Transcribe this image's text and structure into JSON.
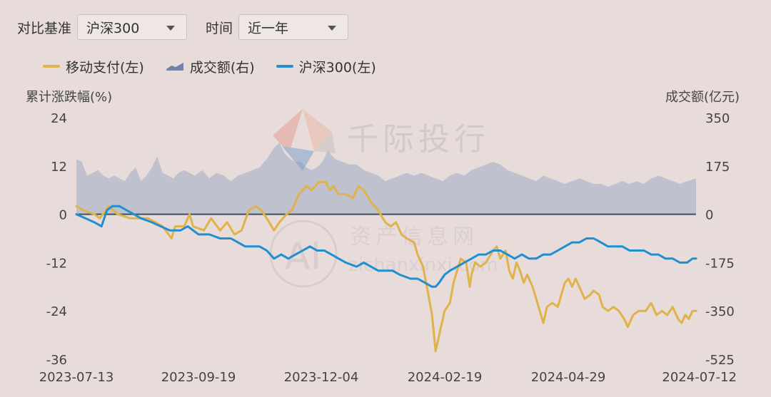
{
  "controls": {
    "benchmark_label": "对比基准",
    "benchmark_value": "沪深300",
    "period_label": "时间",
    "period_value": "近一年"
  },
  "legend": [
    {
      "label": "移动支付(左)",
      "color": "#e0b24a",
      "kind": "line"
    },
    {
      "label": "成交额(右)",
      "color": "#8a9cbe",
      "kind": "area"
    },
    {
      "label": "沪深300(左)",
      "color": "#1f8fd0",
      "kind": "line"
    }
  ],
  "watermarks": {
    "top_text": "千际投行",
    "mid_text": "资产信息网",
    "mid_sub": "zichanxinxi.com",
    "logo_letters": "AI"
  },
  "chart_data": {
    "type": "line",
    "left_axis_title": "累计涨跌幅(%)",
    "right_axis_title": "成交额(亿元)",
    "left_ticks": [
      "24",
      "12",
      "0",
      "-12",
      "-24",
      "-36"
    ],
    "right_ticks": [
      "350",
      "175",
      "0",
      "-175",
      "-350",
      "-525"
    ],
    "ylim_left": [
      -36,
      24
    ],
    "ylim_right": [
      -525,
      350
    ],
    "x_ticks": [
      "2023-07-13",
      "2023-09-19",
      "2023-12-04",
      "2024-02-19",
      "2024-04-29",
      "2024-07-12"
    ],
    "colors": {
      "mobile_pay": "#e0b24a",
      "hs300": "#1f8fd0",
      "volume": "#8a9cbe",
      "zero_line": "#3f5062"
    },
    "series": [
      {
        "name": "移动支付(左)",
        "axis": "left",
        "points": [
          [
            0,
            2
          ],
          [
            4,
            1
          ],
          [
            10,
            0
          ],
          [
            13,
            -1
          ],
          [
            18,
            2
          ],
          [
            23,
            0
          ],
          [
            30,
            -1
          ],
          [
            40,
            -1
          ],
          [
            48,
            -3
          ],
          [
            53,
            -6
          ],
          [
            55,
            -3
          ],
          [
            60,
            -3
          ],
          [
            63,
            0
          ],
          [
            65,
            -3
          ],
          [
            71,
            -4
          ],
          [
            75,
            -1
          ],
          [
            80,
            -4
          ],
          [
            84,
            -2
          ],
          [
            88,
            -5
          ],
          [
            92,
            -4
          ],
          [
            96,
            1
          ],
          [
            100,
            2
          ],
          [
            103,
            1
          ],
          [
            106,
            -1
          ],
          [
            110,
            -4
          ],
          [
            113,
            -2
          ],
          [
            117,
            0
          ],
          [
            120,
            1
          ],
          [
            124,
            5
          ],
          [
            128,
            7
          ],
          [
            131,
            6
          ],
          [
            135,
            8
          ],
          [
            139,
            8
          ],
          [
            141,
            6
          ],
          [
            143,
            7
          ],
          [
            146,
            5
          ],
          [
            150,
            5
          ],
          [
            154,
            4
          ],
          [
            157,
            7
          ],
          [
            160,
            6
          ],
          [
            164,
            3
          ],
          [
            168,
            1
          ],
          [
            172,
            -2
          ],
          [
            175,
            -3
          ],
          [
            178,
            -2
          ],
          [
            181,
            -5
          ],
          [
            184,
            -6
          ],
          [
            188,
            -7
          ],
          [
            190,
            -10
          ],
          [
            193,
            -13
          ],
          [
            196,
            -20
          ],
          [
            198,
            -25
          ],
          [
            200,
            -34
          ],
          [
            201,
            -32
          ],
          [
            203,
            -28
          ],
          [
            205,
            -24
          ],
          [
            208,
            -22
          ],
          [
            210,
            -17
          ],
          [
            212,
            -14
          ],
          [
            214,
            -11
          ],
          [
            217,
            -12
          ],
          [
            219,
            -18
          ],
          [
            220,
            -15
          ],
          [
            222,
            -12
          ],
          [
            225,
            -13
          ],
          [
            228,
            -12
          ],
          [
            232,
            -9
          ],
          [
            234,
            -8
          ],
          [
            236,
            -11
          ],
          [
            239,
            -9
          ],
          [
            241,
            -14
          ],
          [
            243,
            -16
          ],
          [
            245,
            -12
          ],
          [
            247,
            -14
          ],
          [
            249,
            -17
          ],
          [
            251,
            -15
          ],
          [
            254,
            -18
          ],
          [
            256,
            -21
          ],
          [
            258,
            -24
          ],
          [
            260,
            -27
          ],
          [
            262,
            -23
          ],
          [
            265,
            -22
          ],
          [
            268,
            -23
          ],
          [
            270,
            -20
          ],
          [
            272,
            -17
          ],
          [
            274,
            -16
          ],
          [
            276,
            -18
          ],
          [
            278,
            -16
          ],
          [
            281,
            -19
          ],
          [
            283,
            -21
          ],
          [
            286,
            -20
          ],
          [
            288,
            -19
          ],
          [
            291,
            -20
          ],
          [
            293,
            -23
          ],
          [
            296,
            -24
          ],
          [
            299,
            -23
          ],
          [
            302,
            -24
          ],
          [
            305,
            -26
          ],
          [
            307,
            -28
          ],
          [
            310,
            -25
          ],
          [
            313,
            -24
          ],
          [
            317,
            -24
          ],
          [
            320,
            -22
          ],
          [
            323,
            -25
          ],
          [
            326,
            -24
          ],
          [
            329,
            -25
          ],
          [
            332,
            -23
          ],
          [
            335,
            -26
          ],
          [
            337,
            -27
          ],
          [
            339,
            -25
          ],
          [
            341,
            -26
          ],
          [
            343,
            -24
          ],
          [
            345,
            -24
          ]
        ]
      },
      {
        "name": "沪深300(左)",
        "axis": "left",
        "points": [
          [
            0,
            0
          ],
          [
            5,
            -1
          ],
          [
            10,
            -2
          ],
          [
            14,
            -3
          ],
          [
            17,
            1
          ],
          [
            20,
            2
          ],
          [
            24,
            2
          ],
          [
            28,
            1
          ],
          [
            32,
            0
          ],
          [
            36,
            -1
          ],
          [
            42,
            -2
          ],
          [
            47,
            -3
          ],
          [
            52,
            -4
          ],
          [
            58,
            -4
          ],
          [
            62,
            -3
          ],
          [
            68,
            -5
          ],
          [
            74,
            -5
          ],
          [
            80,
            -6
          ],
          [
            86,
            -6
          ],
          [
            90,
            -7
          ],
          [
            94,
            -8
          ],
          [
            98,
            -8
          ],
          [
            102,
            -8
          ],
          [
            106,
            -9
          ],
          [
            110,
            -11
          ],
          [
            114,
            -10
          ],
          [
            118,
            -11
          ],
          [
            122,
            -10
          ],
          [
            126,
            -9
          ],
          [
            130,
            -8
          ],
          [
            134,
            -9
          ],
          [
            138,
            -9
          ],
          [
            142,
            -10
          ],
          [
            146,
            -11
          ],
          [
            150,
            -12
          ],
          [
            156,
            -13
          ],
          [
            160,
            -12
          ],
          [
            164,
            -13
          ],
          [
            168,
            -14
          ],
          [
            172,
            -14
          ],
          [
            176,
            -14
          ],
          [
            180,
            -15
          ],
          [
            186,
            -16
          ],
          [
            190,
            -16
          ],
          [
            194,
            -17
          ],
          [
            198,
            -18
          ],
          [
            200,
            -18
          ],
          [
            202,
            -17
          ],
          [
            205,
            -15
          ],
          [
            208,
            -14
          ],
          [
            212,
            -13
          ],
          [
            216,
            -12
          ],
          [
            220,
            -11
          ],
          [
            224,
            -10
          ],
          [
            228,
            -10
          ],
          [
            232,
            -9
          ],
          [
            236,
            -9
          ],
          [
            240,
            -10
          ],
          [
            244,
            -11
          ],
          [
            248,
            -10
          ],
          [
            252,
            -11
          ],
          [
            256,
            -11
          ],
          [
            260,
            -10
          ],
          [
            264,
            -10
          ],
          [
            268,
            -9
          ],
          [
            272,
            -8
          ],
          [
            276,
            -7
          ],
          [
            280,
            -7
          ],
          [
            284,
            -6
          ],
          [
            288,
            -6
          ],
          [
            292,
            -7
          ],
          [
            296,
            -8
          ],
          [
            300,
            -8
          ],
          [
            304,
            -8
          ],
          [
            308,
            -9
          ],
          [
            312,
            -9
          ],
          [
            316,
            -9
          ],
          [
            320,
            -10
          ],
          [
            324,
            -10
          ],
          [
            328,
            -11
          ],
          [
            332,
            -11
          ],
          [
            336,
            -12
          ],
          [
            340,
            -12
          ],
          [
            343,
            -11
          ],
          [
            345,
            -11
          ]
        ]
      },
      {
        "name": "成交额(右)",
        "axis": "right",
        "points": [
          [
            0,
            200
          ],
          [
            3,
            190
          ],
          [
            6,
            140
          ],
          [
            9,
            150
          ],
          [
            12,
            160
          ],
          [
            15,
            140
          ],
          [
            18,
            130
          ],
          [
            21,
            140
          ],
          [
            24,
            130
          ],
          [
            27,
            120
          ],
          [
            30,
            150
          ],
          [
            33,
            170
          ],
          [
            36,
            120
          ],
          [
            39,
            140
          ],
          [
            42,
            170
          ],
          [
            45,
            210
          ],
          [
            48,
            150
          ],
          [
            51,
            140
          ],
          [
            54,
            130
          ],
          [
            57,
            150
          ],
          [
            60,
            160
          ],
          [
            63,
            150
          ],
          [
            66,
            140
          ],
          [
            70,
            160
          ],
          [
            74,
            130
          ],
          [
            78,
            150
          ],
          [
            82,
            140
          ],
          [
            86,
            120
          ],
          [
            90,
            140
          ],
          [
            94,
            150
          ],
          [
            98,
            160
          ],
          [
            102,
            170
          ],
          [
            106,
            200
          ],
          [
            110,
            240
          ],
          [
            113,
            260
          ],
          [
            116,
            220
          ],
          [
            119,
            200
          ],
          [
            122,
            190
          ],
          [
            125,
            190
          ],
          [
            128,
            170
          ],
          [
            131,
            160
          ],
          [
            134,
            170
          ],
          [
            137,
            190
          ],
          [
            140,
            230
          ],
          [
            144,
            200
          ],
          [
            148,
            190
          ],
          [
            152,
            180
          ],
          [
            156,
            180
          ],
          [
            160,
            160
          ],
          [
            164,
            150
          ],
          [
            168,
            140
          ],
          [
            172,
            120
          ],
          [
            176,
            130
          ],
          [
            180,
            140
          ],
          [
            184,
            150
          ],
          [
            188,
            140
          ],
          [
            192,
            150
          ],
          [
            196,
            140
          ],
          [
            200,
            130
          ],
          [
            204,
            120
          ],
          [
            208,
            140
          ],
          [
            212,
            150
          ],
          [
            216,
            140
          ],
          [
            220,
            160
          ],
          [
            224,
            170
          ],
          [
            228,
            180
          ],
          [
            232,
            190
          ],
          [
            236,
            180
          ],
          [
            240,
            160
          ],
          [
            244,
            150
          ],
          [
            248,
            140
          ],
          [
            252,
            130
          ],
          [
            256,
            120
          ],
          [
            260,
            140
          ],
          [
            264,
            130
          ],
          [
            268,
            120
          ],
          [
            272,
            110
          ],
          [
            276,
            120
          ],
          [
            280,
            130
          ],
          [
            284,
            120
          ],
          [
            288,
            110
          ],
          [
            292,
            110
          ],
          [
            296,
            100
          ],
          [
            300,
            110
          ],
          [
            304,
            120
          ],
          [
            308,
            110
          ],
          [
            312,
            120
          ],
          [
            316,
            110
          ],
          [
            320,
            130
          ],
          [
            324,
            140
          ],
          [
            328,
            130
          ],
          [
            332,
            120
          ],
          [
            336,
            110
          ],
          [
            340,
            120
          ],
          [
            345,
            130
          ]
        ]
      }
    ],
    "zero_line": true,
    "grid": false
  }
}
